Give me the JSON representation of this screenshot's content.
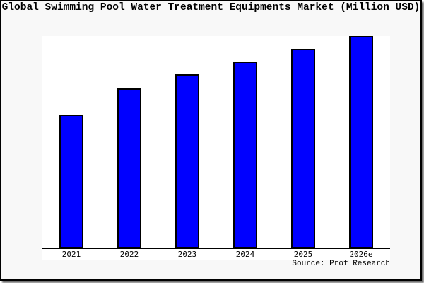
{
  "frame": {
    "background": "#f8f8f8",
    "border_color": "#000000",
    "shadow_color": "#555555"
  },
  "chart_data": {
    "type": "bar",
    "title": "Global Swimming Pool Water Treatment Equipments Market (Million USD)",
    "categories": [
      "2021",
      "2022",
      "2023",
      "2024",
      "2025",
      "2026e"
    ],
    "values": [
      63,
      75.5,
      81.9,
      87.9,
      93.9,
      100
    ],
    "values_note": "y-axis has no tick labels; values are relative bar heights as % of the tallest (2026e) bar",
    "xlabel": "",
    "ylabel": "",
    "ylim": [
      0,
      100
    ],
    "grid": false,
    "legend": "none",
    "plot_background": "#ffffff",
    "bar_color": "#0000ff",
    "bar_border_color": "#000000",
    "axis_color": "#000000"
  },
  "source_note": "Source: Prof Research"
}
